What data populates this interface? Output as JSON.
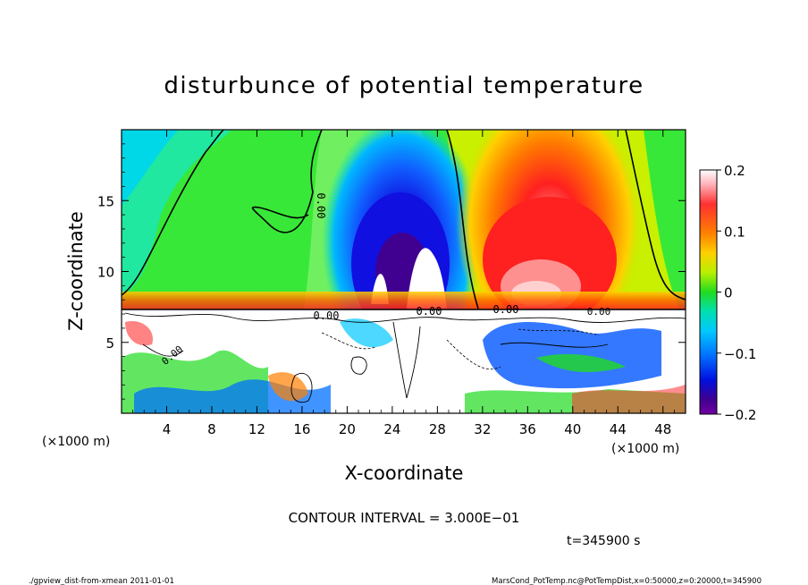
{
  "chart_data": {
    "type": "heatmap",
    "title": "disturbunce of potential temperature",
    "xlabel": "X-coordinate",
    "ylabel": "Z-coordinate",
    "x_units_left": "(×1000 m)",
    "x_units_right": "(×1000 m)",
    "xlim": [
      0,
      50
    ],
    "ylim": [
      0,
      20
    ],
    "x_ticks": [
      4,
      8,
      12,
      16,
      20,
      24,
      28,
      32,
      36,
      40,
      44,
      48
    ],
    "y_ticks": [
      5,
      10,
      15
    ],
    "colorbar": {
      "min": -0.2,
      "max": 0.2,
      "ticks": [
        "0.2",
        "0.1",
        "0",
        "−0.1",
        "−0.2"
      ],
      "tick_values": [
        0.2,
        0.1,
        0,
        -0.1,
        -0.2
      ]
    },
    "contour_labels": [
      "0.00",
      "0.00",
      "0.00",
      "0.00",
      "0.00",
      "0.00"
    ],
    "contour_interval": "CONTOUR INTERVAL = 3.000E−01",
    "time_label": "t=345900  s",
    "grid": false
  },
  "footer": {
    "left": "./gpview_dist-from-xmean  2011-01-01",
    "right": "MarsCond_PotTemp.nc@PotTempDist,x=0:50000,z=0:20000,t=345900"
  }
}
